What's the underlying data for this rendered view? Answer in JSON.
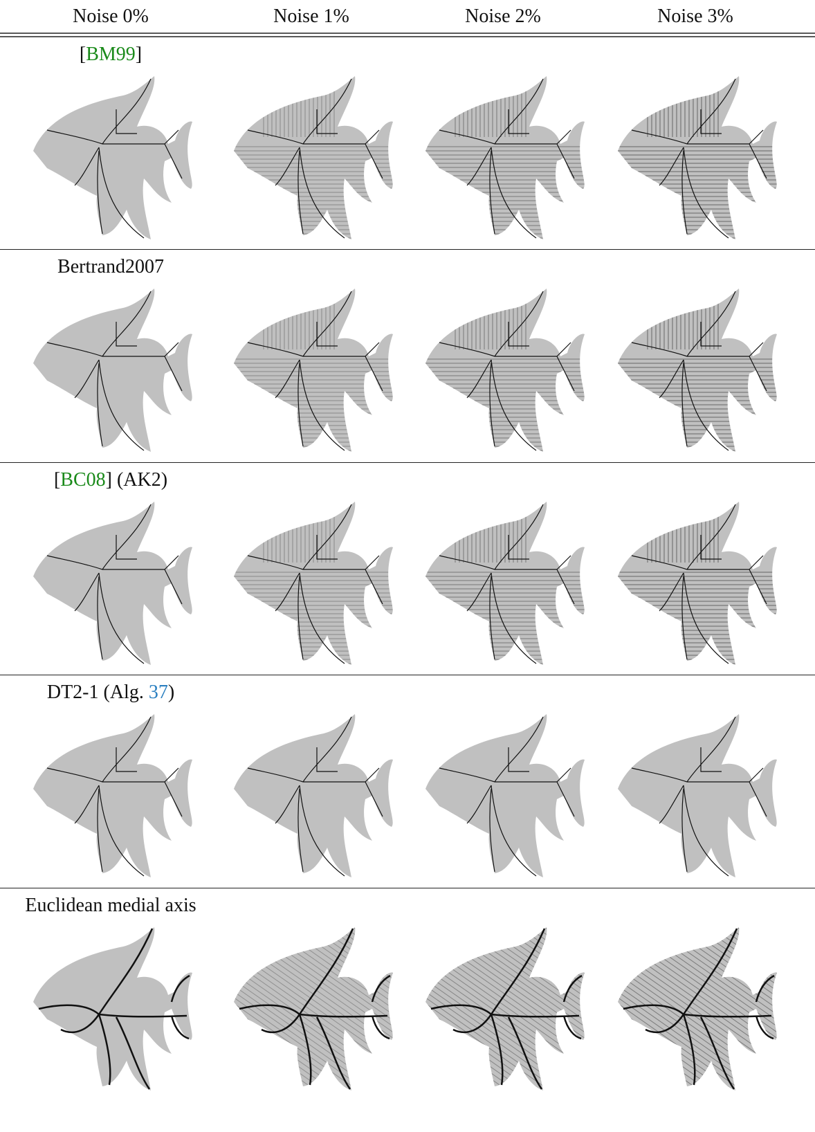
{
  "columns": [
    "Noise 0%",
    "Noise 1%",
    "Noise 2%",
    "Noise 3%"
  ],
  "rows": [
    {
      "label": [
        "[",
        "BM99",
        "]"
      ]
    },
    {
      "label": [
        "Bertrand2007"
      ]
    },
    {
      "label": [
        "[",
        "BC08",
        "] (AK2)"
      ]
    },
    {
      "label": [
        "DT2-1 (Alg. ",
        "37",
        ")"
      ]
    },
    {
      "label": [
        "Euclidean medial axis"
      ]
    }
  ]
}
